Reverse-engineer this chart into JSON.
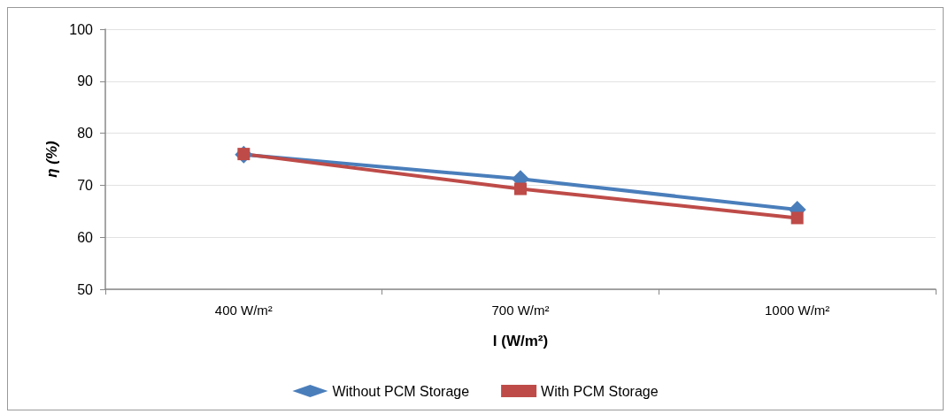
{
  "chart_data": {
    "type": "line",
    "xlabel": "I (W/m²)",
    "ylabel": "η (%)",
    "categories": [
      "400 W/m²",
      "700 W/m²",
      "1000 W/m²"
    ],
    "series": [
      {
        "name": "Without PCM Storage",
        "color": "#4a7ebb",
        "marker": "diamond",
        "values": [
          75.9,
          71.2,
          65.3
        ]
      },
      {
        "name": "With PCM Storage",
        "color": "#be4b48",
        "marker": "square",
        "values": [
          76.0,
          69.3,
          63.7
        ]
      }
    ],
    "ylim": [
      50,
      100
    ],
    "yticks": [
      50,
      60,
      70,
      80,
      90,
      100
    ],
    "grid": "y",
    "legend": "bottom"
  }
}
